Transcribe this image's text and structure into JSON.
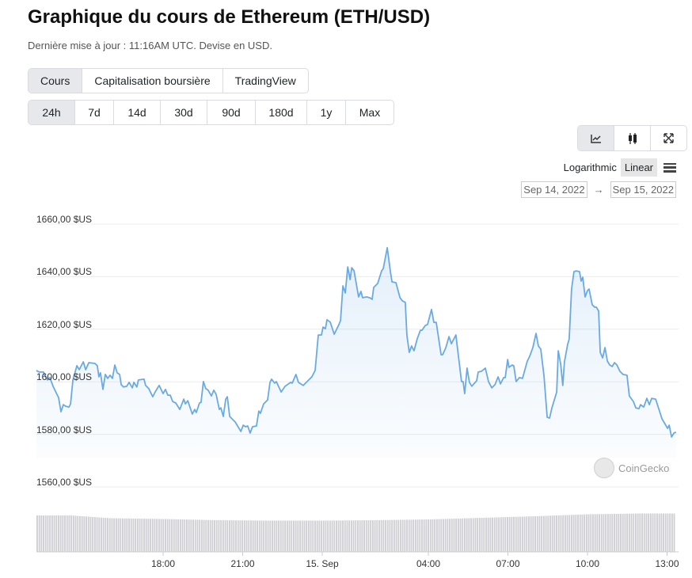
{
  "header": {
    "title": "Graphique du cours de Ethereum (ETH/USD)",
    "subtitle": "Dernière mise à jour : 11:16AM UTC. Devise en USD."
  },
  "tabs": [
    {
      "label": "Cours",
      "active": true
    },
    {
      "label": "Capitalisation boursière"
    },
    {
      "label": "TradingView"
    }
  ],
  "ranges": [
    {
      "label": "24h",
      "active": true
    },
    {
      "label": "7d"
    },
    {
      "label": "14d"
    },
    {
      "label": "30d"
    },
    {
      "label": "90d"
    },
    {
      "label": "180d"
    },
    {
      "label": "1y"
    },
    {
      "label": "Max"
    }
  ],
  "chart_types": [
    "line-chart-icon",
    "candlestick-icon",
    "fullscreen-icon"
  ],
  "scale": {
    "log": "Logarithmic",
    "linear": "Linear",
    "selected": "Linear"
  },
  "date_range": {
    "from": "Sep 14, 2022",
    "arrow": "→",
    "to": "Sep 15, 2022"
  },
  "watermark": "CoinGecko",
  "colors": {
    "line": "#6aaae4",
    "grid": "#ececec",
    "volume": "#cfcfd4"
  },
  "chart_data": {
    "type": "area",
    "title": "",
    "xlabel": "",
    "ylabel": "",
    "x_unit": "hours since Sep 14, 2022 00:00 UTC",
    "ylim": [
      1555,
      1665
    ],
    "xlim": [
      13.22,
      37.4
    ],
    "y_ticks": [
      {
        "v": 1660,
        "label": "1660,00 $US"
      },
      {
        "v": 1640,
        "label": "1640,00 $US"
      },
      {
        "v": 1620,
        "label": "1620,00 $US"
      },
      {
        "v": 1600,
        "label": "1600,00 $US"
      },
      {
        "v": 1580,
        "label": "1580,00 $US"
      },
      {
        "v": 1560,
        "label": "1560,00 $US"
      }
    ],
    "x_ticks": [
      {
        "v": 18,
        "label": "18:00"
      },
      {
        "v": 21,
        "label": "21:00"
      },
      {
        "v": 24,
        "label": "15. Sep"
      },
      {
        "v": 28,
        "label": "04:00"
      },
      {
        "v": 31,
        "label": "07:00"
      },
      {
        "v": 34,
        "label": "10:00"
      },
      {
        "v": 37,
        "label": "13:00"
      }
    ],
    "grid": true,
    "series": [
      {
        "name": "ETH/USD",
        "t": [
          13.22,
          13.34,
          13.49,
          13.64,
          13.73,
          13.85,
          14.0,
          14.06,
          14.15,
          14.24,
          14.33,
          14.45,
          14.51,
          14.6,
          14.75,
          14.84,
          14.99,
          15.08,
          15.2,
          15.43,
          15.52,
          15.58,
          15.64,
          15.73,
          15.82,
          15.91,
          16.0,
          16.09,
          16.18,
          16.27,
          16.36,
          16.42,
          16.51,
          16.63,
          16.72,
          16.84,
          16.9,
          17.01,
          17.07,
          17.28,
          17.34,
          17.46,
          17.61,
          17.7,
          17.85,
          17.91,
          18.0,
          18.09,
          18.18,
          18.27,
          18.36,
          18.48,
          18.63,
          18.78,
          18.84,
          18.93,
          19.1,
          19.19,
          19.25,
          19.37,
          19.43,
          19.52,
          19.61,
          19.7,
          19.82,
          19.91,
          20.0,
          20.12,
          20.18,
          20.27,
          20.36,
          20.42,
          20.51,
          20.72,
          20.93,
          21.02,
          21.11,
          21.19,
          21.28,
          21.37,
          21.52,
          21.61,
          21.67,
          21.79,
          21.94,
          22.03,
          22.09,
          22.21,
          22.27,
          22.45,
          22.6,
          22.81,
          22.87,
          23.01,
          23.1,
          23.28,
          23.43,
          23.61,
          23.73,
          23.85,
          23.97,
          24.03,
          24.12,
          24.18,
          24.3,
          24.45,
          24.63,
          24.69,
          24.78,
          24.87,
          24.96,
          25.05,
          25.11,
          25.2,
          25.37,
          25.46,
          25.52,
          25.67,
          25.79,
          25.88,
          25.94,
          26.09,
          26.24,
          26.3,
          26.45,
          26.57,
          26.63,
          26.78,
          26.93,
          27.02,
          27.13,
          27.19,
          27.28,
          27.37,
          27.46,
          27.58,
          27.7,
          27.76,
          27.88,
          27.97,
          28.12,
          28.21,
          28.3,
          28.48,
          28.54,
          28.66,
          28.78,
          28.87,
          29.04,
          29.25,
          29.31,
          29.37,
          29.46,
          29.55,
          29.64,
          29.82,
          29.88,
          30.0,
          30.15,
          30.27,
          30.39,
          30.51,
          30.63,
          30.72,
          30.84,
          30.9,
          30.99,
          31.04,
          31.16,
          31.22,
          31.31,
          31.43,
          31.55,
          31.73,
          31.82,
          31.94,
          32.06,
          32.15,
          32.24,
          32.36,
          32.48,
          32.57,
          32.66,
          32.75,
          32.84,
          32.9,
          32.99,
          33.07,
          33.13,
          33.25,
          33.31,
          33.4,
          33.49,
          33.58,
          33.7,
          33.76,
          33.82,
          33.91,
          34.0,
          34.06,
          34.18,
          34.27,
          34.33,
          34.42,
          34.48,
          34.57,
          34.66,
          34.75,
          34.84,
          34.93,
          35.02,
          35.11,
          35.22,
          35.34,
          35.49,
          35.58,
          35.73,
          35.82,
          35.94,
          36.0,
          36.12,
          36.24,
          36.33,
          36.42,
          36.57,
          36.81,
          37.02,
          37.08,
          37.17,
          37.26,
          37.34
        ],
        "price": [
          1604.3,
          1603.7,
          1603.7,
          1600.7,
          1601.6,
          1598.3,
          1595.2,
          1594.0,
          1588.6,
          1591.3,
          1590.7,
          1590.4,
          1591.6,
          1600.7,
          1606.1,
          1604.6,
          1607.6,
          1604.6,
          1607.3,
          1607.0,
          1606.1,
          1601.9,
          1603.4,
          1597.1,
          1602.8,
          1601.3,
          1602.5,
          1601.3,
          1606.4,
          1603.4,
          1602.8,
          1598.9,
          1598.0,
          1598.3,
          1599.8,
          1597.7,
          1599.8,
          1598.0,
          1600.7,
          1601.0,
          1598.6,
          1597.4,
          1594.3,
          1596.1,
          1598.6,
          1597.4,
          1595.5,
          1597.1,
          1594.9,
          1594.9,
          1592.5,
          1591.9,
          1589.5,
          1593.4,
          1591.6,
          1592.8,
          1587.7,
          1589.5,
          1588.3,
          1591.9,
          1592.2,
          1600.1,
          1597.4,
          1596.8,
          1594.6,
          1596.8,
          1595.2,
          1589.5,
          1590.1,
          1586.8,
          1593.4,
          1594.3,
          1586.8,
          1584.7,
          1581.1,
          1583.5,
          1582.9,
          1583.2,
          1580.5,
          1582.9,
          1583.2,
          1588.9,
          1588.0,
          1591.6,
          1593.1,
          1599.8,
          1601.0,
          1599.5,
          1600.1,
          1596.1,
          1598.3,
          1599.8,
          1599.5,
          1602.8,
          1599.8,
          1598.6,
          1600.1,
          1601.9,
          1604.3,
          1617.8,
          1617.8,
          1620.8,
          1620.2,
          1623.6,
          1622.7,
          1618.1,
          1621.8,
          1623.3,
          1636.5,
          1633.8,
          1643.7,
          1638.9,
          1643.4,
          1642.2,
          1632.3,
          1634.4,
          1632.0,
          1632.3,
          1632.0,
          1631.4,
          1635.9,
          1637.4,
          1642.2,
          1643.1,
          1651.0,
          1641.9,
          1638.0,
          1637.7,
          1632.0,
          1630.8,
          1630.2,
          1617.8,
          1611.2,
          1613.6,
          1611.8,
          1616.3,
          1619.6,
          1619.6,
          1621.4,
          1621.8,
          1627.5,
          1622.6,
          1622.6,
          1610.3,
          1610.3,
          1613.0,
          1617.2,
          1614.5,
          1617.8,
          1600.1,
          1600.1,
          1595.5,
          1605.2,
          1599.8,
          1598.3,
          1600.4,
          1603.7,
          1604.0,
          1605.2,
          1600.1,
          1597.7,
          1598.9,
          1601.9,
          1599.2,
          1601.6,
          1601.6,
          1608.5,
          1605.5,
          1606.4,
          1606.1,
          1600.1,
          1601.6,
          1601.3,
          1607.9,
          1609.7,
          1613.0,
          1618.4,
          1613.6,
          1612.4,
          1602.2,
          1586.5,
          1586.2,
          1590.1,
          1593.1,
          1596.1,
          1611.8,
          1606.7,
          1598.6,
          1607.6,
          1614.2,
          1616.3,
          1635.3,
          1641.9,
          1642.2,
          1641.9,
          1638.3,
          1639.8,
          1632.3,
          1634.7,
          1635.3,
          1629.3,
          1628.4,
          1628.4,
          1626.9,
          1611.2,
          1609.1,
          1613.0,
          1607.9,
          1606.4,
          1605.8,
          1607.3,
          1606.4,
          1604.0,
          1602.8,
          1602.5,
          1594.6,
          1592.5,
          1590.1,
          1589.8,
          1591.3,
          1590.4,
          1593.7,
          1591.3,
          1593.7,
          1593.4,
          1585.9,
          1582.3,
          1583.5,
          1579.0,
          1580.5,
          1580.8
        ]
      }
    ],
    "volume_relative": {
      "t": [
        13.22,
        14.5,
        16,
        18,
        20,
        22,
        24,
        26,
        28,
        30,
        32,
        34,
        36,
        37.4
      ],
      "v": [
        0.92,
        0.92,
        0.85,
        0.83,
        0.8,
        0.79,
        0.79,
        0.8,
        0.82,
        0.86,
        0.9,
        0.95,
        0.97,
        0.97
      ]
    }
  }
}
